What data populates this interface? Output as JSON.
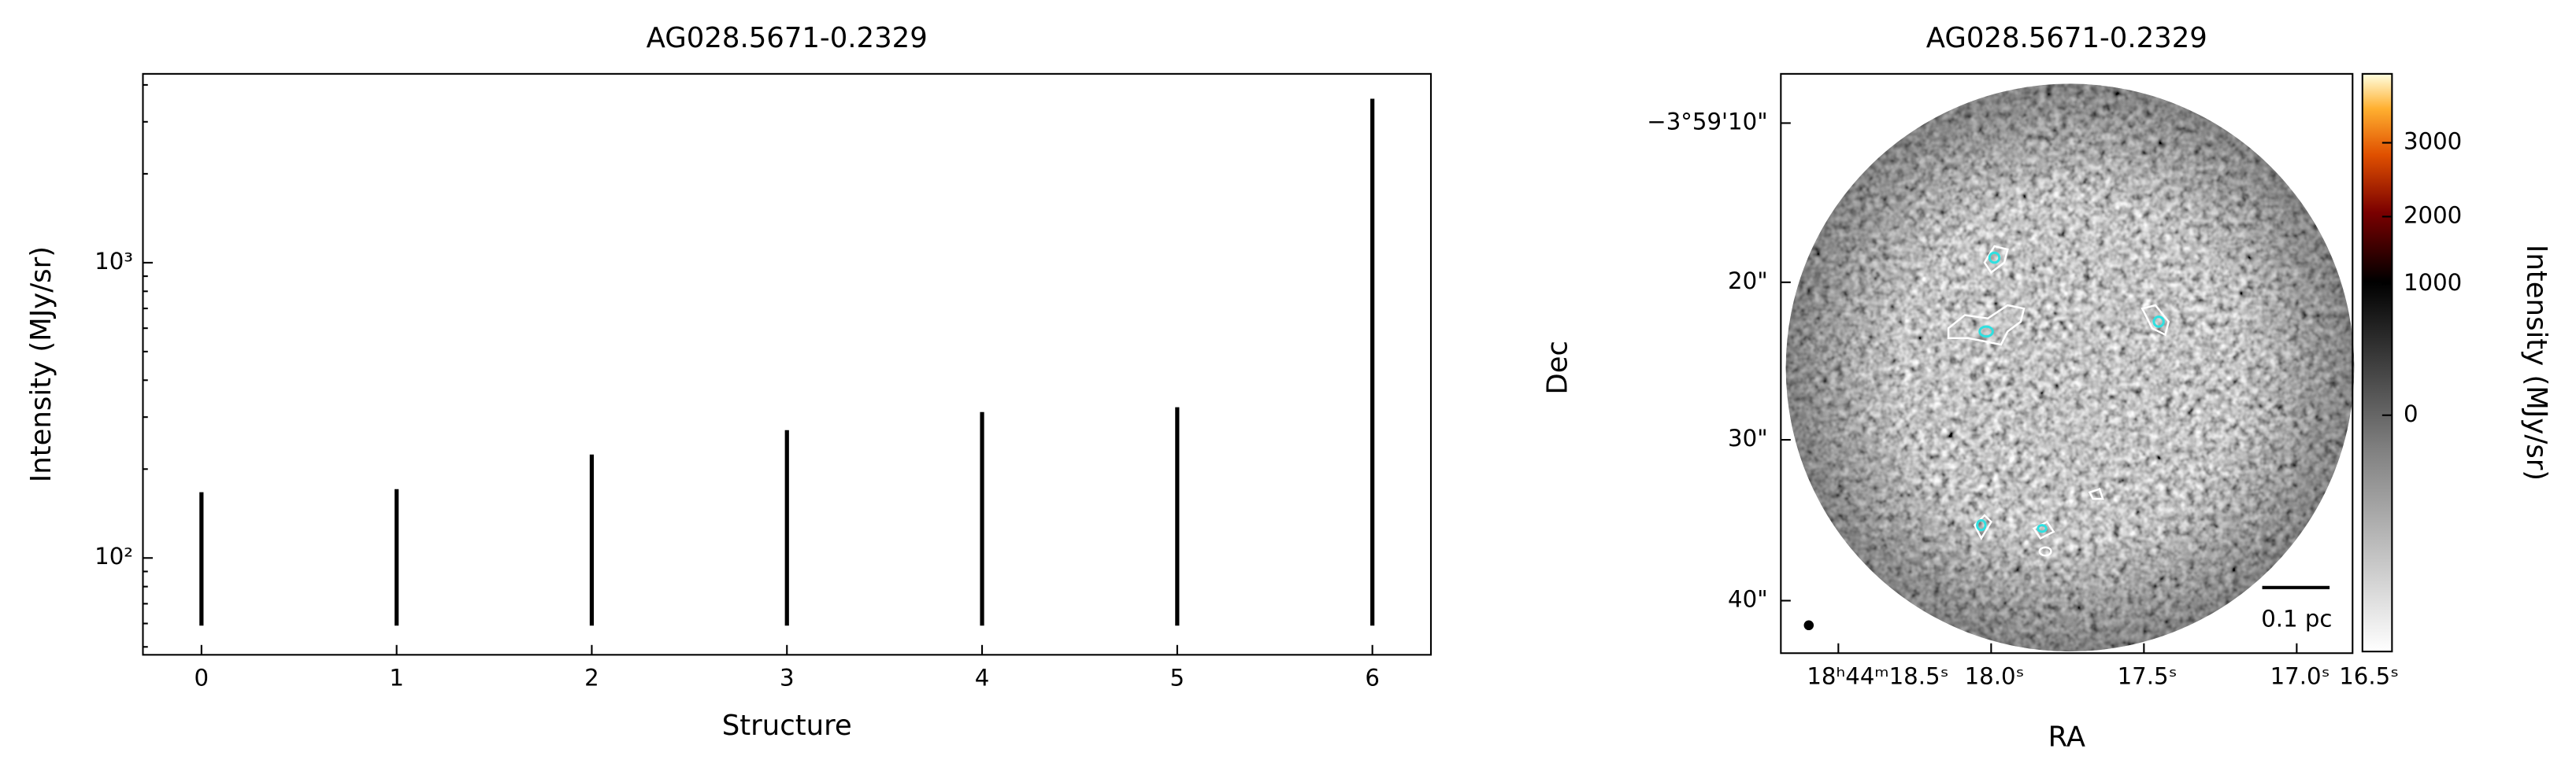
{
  "chart_data": [
    {
      "type": "stem",
      "title": "AG028.5671-0.2329",
      "xlabel": "Structure",
      "ylabel": "Intensity (MJy/sr)",
      "x": [
        0,
        1,
        2,
        3,
        4,
        5,
        6
      ],
      "values": [
        167,
        171,
        224,
        271,
        312,
        324,
        3590
      ],
      "baseline": 59,
      "color": "#000000",
      "yscale": "log",
      "xlim": [
        -0.3,
        6.3
      ],
      "ylim": [
        47,
        4360
      ],
      "xticks": [
        0,
        1,
        2,
        3,
        4,
        5,
        6
      ],
      "yticks": [
        {
          "value": 100,
          "label": "10²"
        },
        {
          "value": 1000,
          "label": "10³"
        }
      ]
    },
    {
      "type": "image",
      "title": "AG028.5671-0.2329",
      "xlabel": "RA",
      "ylabel": "Dec",
      "xticks": [
        "18ʰ44ᵐ18.5ˢ",
        "18.0ˢ",
        "17.5ˢ",
        "17.0ˢ",
        "16.5ˢ"
      ],
      "yticks": [
        "−3°59'10\"",
        "20\"",
        "30\"",
        "40\""
      ],
      "colorbar": {
        "label": "Intensity (MJy/sr)",
        "ticks": [
          0,
          1000,
          2000,
          3000
        ]
      },
      "scalebar": "0.1 pc"
    }
  ]
}
